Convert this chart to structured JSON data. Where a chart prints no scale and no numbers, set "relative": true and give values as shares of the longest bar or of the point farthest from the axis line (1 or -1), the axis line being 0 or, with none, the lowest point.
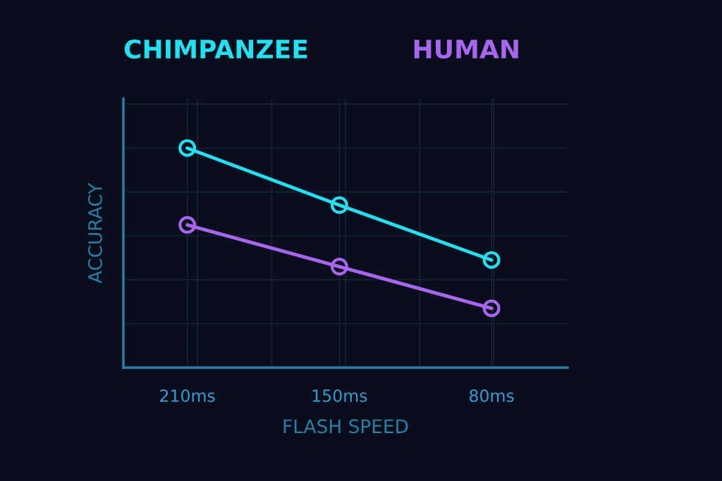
{
  "chart_data": {
    "type": "line",
    "xlabel": "FLASH SPEED",
    "ylabel": "ACCURACY",
    "categories": [
      "210ms",
      "150ms",
      "80ms"
    ],
    "relative": true,
    "grid": true,
    "legend": "top",
    "marker": "circle",
    "line_style": "solid",
    "series": [
      {
        "name": "CHIMPANZEE",
        "color": "#22e0f0",
        "values": [
          1,
          0.74,
          0.49
        ]
      },
      {
        "name": "HUMAN",
        "color": "#a866f0",
        "values": [
          0.65,
          0.46,
          0.27
        ]
      }
    ]
  }
}
